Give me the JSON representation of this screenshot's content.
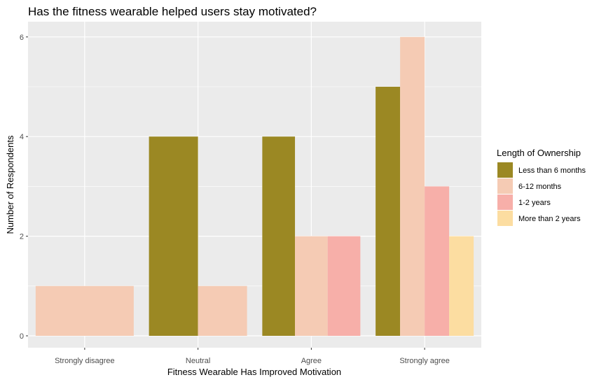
{
  "chart_data": {
    "type": "bar",
    "title": "Has the fitness wearable helped users stay motivated?",
    "xlabel": "Fitness Wearable Has Improved Motivation",
    "ylabel": "Number of Respondents",
    "ylim": [
      0,
      7
    ],
    "yticks": [
      0,
      2,
      4,
      6
    ],
    "grid": true,
    "legend_position": "right",
    "legend_title": "Length of Ownership",
    "categories": [
      "Strongly disagree",
      "Neutral",
      "Agree",
      "Strongly agree"
    ],
    "series": [
      {
        "name": "Less than 6 months",
        "color": "#9b8823",
        "values": [
          null,
          4,
          4,
          5
        ]
      },
      {
        "name": "6-12 months",
        "color": "#f5cbb4",
        "values": [
          1,
          1,
          2,
          6
        ]
      },
      {
        "name": "1-2 years",
        "color": "#f7afa9",
        "values": [
          null,
          null,
          2,
          3
        ]
      },
      {
        "name": "More than 2 years",
        "color": "#fcdda1",
        "values": [
          null,
          null,
          null,
          2
        ]
      }
    ]
  }
}
